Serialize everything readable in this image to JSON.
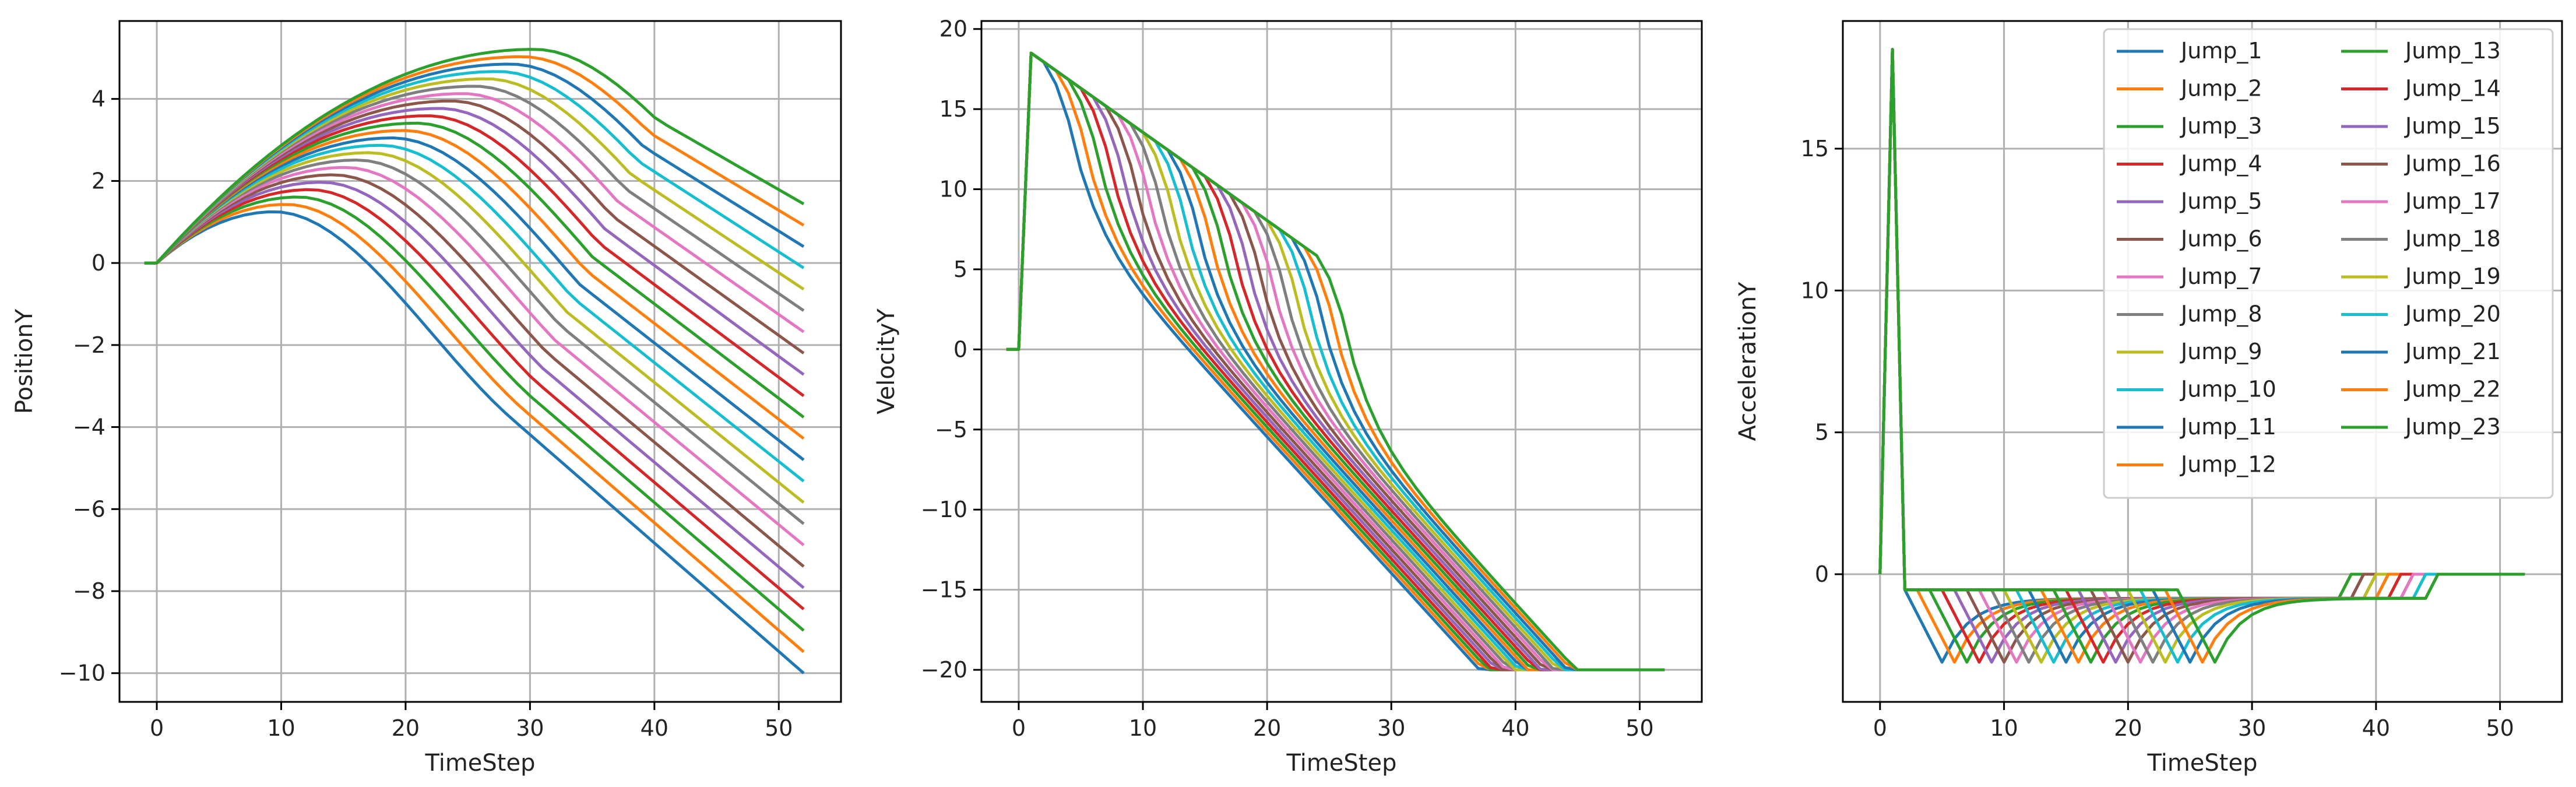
{
  "chart_data": [
    {
      "type": "line",
      "xlabel": "TimeStep",
      "ylabel": "PositionY",
      "xlim": [
        -3,
        55
      ],
      "ylim": [
        -10.7,
        5.9
      ],
      "xticks": [
        0,
        10,
        20,
        30,
        40,
        50
      ],
      "yticks": [
        -10,
        -8,
        -6,
        -4,
        -2,
        0,
        2,
        4
      ],
      "grid": true
    },
    {
      "type": "line",
      "xlabel": "TimeStep",
      "ylabel": "VelocityY",
      "xlim": [
        -3,
        55
      ],
      "ylim": [
        -22,
        20.5
      ],
      "xticks": [
        0,
        10,
        20,
        30,
        40,
        50
      ],
      "yticks": [
        -20,
        -15,
        -10,
        -5,
        0,
        5,
        10,
        15,
        20
      ],
      "grid": true
    },
    {
      "type": "line",
      "xlabel": "TimeStep",
      "ylabel": "AccelerationY",
      "xlim": [
        -3,
        55
      ],
      "ylim": [
        -4.5,
        19.5
      ],
      "xticks": [
        0,
        10,
        20,
        30,
        40,
        50
      ],
      "yticks": [
        0,
        5,
        10,
        15
      ],
      "grid": true,
      "legend": {
        "placement": "upper-right",
        "columns": 2
      }
    }
  ],
  "series": [
    {
      "name": "Jump_1",
      "color": "#1f77b4"
    },
    {
      "name": "Jump_2",
      "color": "#ff7f0e"
    },
    {
      "name": "Jump_3",
      "color": "#2ca02c"
    },
    {
      "name": "Jump_4",
      "color": "#d62728"
    },
    {
      "name": "Jump_5",
      "color": "#9467bd"
    },
    {
      "name": "Jump_6",
      "color": "#8c564b"
    },
    {
      "name": "Jump_7",
      "color": "#e377c2"
    },
    {
      "name": "Jump_8",
      "color": "#7f7f7f"
    },
    {
      "name": "Jump_9",
      "color": "#bcbd22"
    },
    {
      "name": "Jump_10",
      "color": "#17becf"
    },
    {
      "name": "Jump_11",
      "color": "#1f77b4"
    },
    {
      "name": "Jump_12",
      "color": "#ff7f0e"
    },
    {
      "name": "Jump_13",
      "color": "#2ca02c"
    },
    {
      "name": "Jump_14",
      "color": "#d62728"
    },
    {
      "name": "Jump_15",
      "color": "#9467bd"
    },
    {
      "name": "Jump_16",
      "color": "#8c564b"
    },
    {
      "name": "Jump_17",
      "color": "#e377c2"
    },
    {
      "name": "Jump_18",
      "color": "#7f7f7f"
    },
    {
      "name": "Jump_19",
      "color": "#bcbd22"
    },
    {
      "name": "Jump_20",
      "color": "#17becf"
    },
    {
      "name": "Jump_21",
      "color": "#1f77b4"
    },
    {
      "name": "Jump_22",
      "color": "#ff7f0e"
    },
    {
      "name": "Jump_23",
      "color": "#2ca02c"
    }
  ]
}
